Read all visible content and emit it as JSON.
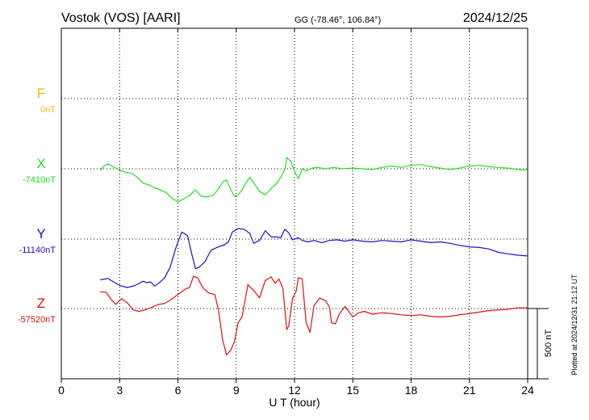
{
  "chart_data": {
    "type": "line",
    "title": "Vostok (VOS)  [AARI]",
    "coords": "GG (-78.46°, 106.84°)",
    "date": "2024/12/25",
    "plotted_note": "Plotted at 2024/12/31 21:12 UT",
    "xlabel": "U T (hour)",
    "xlim": [
      0,
      24
    ],
    "x_ticks": [
      "0",
      "3",
      "6",
      "9",
      "12",
      "15",
      "18",
      "21",
      "24"
    ],
    "scale_label": "500 nT",
    "scale_nT": 500,
    "grid": true,
    "series": [
      {
        "name": "F",
        "baseline_label": "0nT",
        "color": "#f5b400",
        "baseline_nT": 0,
        "points": []
      },
      {
        "name": "X",
        "baseline_label": "-7410nT",
        "color": "#22e022",
        "baseline_nT": -7410,
        "points": [
          [
            2.0,
            -10
          ],
          [
            2.2,
            20
          ],
          [
            2.4,
            35
          ],
          [
            2.6,
            20
          ],
          [
            2.8,
            5
          ],
          [
            3.1,
            -15
          ],
          [
            3.3,
            -25
          ],
          [
            3.6,
            -30
          ],
          [
            3.9,
            -60
          ],
          [
            4.2,
            -100
          ],
          [
            4.5,
            -115
          ],
          [
            4.8,
            -135
          ],
          [
            5.1,
            -150
          ],
          [
            5.4,
            -170
          ],
          [
            5.7,
            -210
          ],
          [
            6.0,
            -235
          ],
          [
            6.3,
            -215
          ],
          [
            6.6,
            -190
          ],
          [
            6.9,
            -150
          ],
          [
            7.2,
            -195
          ],
          [
            7.5,
            -200
          ],
          [
            7.8,
            -190
          ],
          [
            8.1,
            -140
          ],
          [
            8.3,
            -95
          ],
          [
            8.5,
            -80
          ],
          [
            8.7,
            -140
          ],
          [
            8.9,
            -195
          ],
          [
            9.1,
            -185
          ],
          [
            9.3,
            -150
          ],
          [
            9.5,
            -100
          ],
          [
            9.7,
            -60
          ],
          [
            9.9,
            -100
          ],
          [
            10.2,
            -160
          ],
          [
            10.5,
            -185
          ],
          [
            10.8,
            -140
          ],
          [
            11.1,
            -100
          ],
          [
            11.3,
            -60
          ],
          [
            11.5,
            -5
          ],
          [
            11.6,
            80
          ],
          [
            11.8,
            55
          ],
          [
            12.0,
            -15
          ],
          [
            12.2,
            -70
          ],
          [
            12.4,
            0
          ],
          [
            12.6,
            -15
          ],
          [
            12.9,
            5
          ],
          [
            13.2,
            10
          ],
          [
            13.6,
            0
          ],
          [
            14.0,
            10
          ],
          [
            14.5,
            0
          ],
          [
            15.0,
            5
          ],
          [
            15.5,
            0
          ],
          [
            16.0,
            -5
          ],
          [
            16.5,
            10
          ],
          [
            17.0,
            20
          ],
          [
            17.5,
            10
          ],
          [
            18.0,
            25
          ],
          [
            18.5,
            30
          ],
          [
            19.0,
            15
          ],
          [
            19.5,
            5
          ],
          [
            20.0,
            -5
          ],
          [
            20.5,
            5
          ],
          [
            21.0,
            20
          ],
          [
            21.5,
            25
          ],
          [
            22.0,
            15
          ],
          [
            22.5,
            10
          ],
          [
            23.0,
            5
          ],
          [
            23.5,
            -5
          ],
          [
            24.0,
            -10
          ]
        ]
      },
      {
        "name": "Y",
        "baseline_label": "-11140nT",
        "color": "#1414cc",
        "baseline_nT": -11140,
        "points": [
          [
            2.0,
            -290
          ],
          [
            2.4,
            -280
          ],
          [
            2.7,
            -305
          ],
          [
            3.0,
            -330
          ],
          [
            3.4,
            -345
          ],
          [
            3.8,
            -330
          ],
          [
            4.2,
            -300
          ],
          [
            4.4,
            -310
          ],
          [
            4.6,
            -305
          ],
          [
            4.8,
            -335
          ],
          [
            5.0,
            -315
          ],
          [
            5.3,
            -280
          ],
          [
            5.6,
            -200
          ],
          [
            5.9,
            -60
          ],
          [
            6.2,
            50
          ],
          [
            6.5,
            25
          ],
          [
            6.7,
            -100
          ],
          [
            6.9,
            -210
          ],
          [
            7.1,
            -200
          ],
          [
            7.4,
            -160
          ],
          [
            7.7,
            -80
          ],
          [
            8.0,
            -60
          ],
          [
            8.4,
            -40
          ],
          [
            8.6,
            -20
          ],
          [
            8.8,
            50
          ],
          [
            9.1,
            75
          ],
          [
            9.4,
            70
          ],
          [
            9.7,
            40
          ],
          [
            9.9,
            -30
          ],
          [
            10.2,
            -10
          ],
          [
            10.5,
            60
          ],
          [
            10.8,
            15
          ],
          [
            11.1,
            15
          ],
          [
            11.3,
            10
          ],
          [
            11.5,
            70
          ],
          [
            11.7,
            45
          ],
          [
            11.9,
            -5
          ],
          [
            12.2,
            10
          ],
          [
            12.4,
            -10
          ],
          [
            12.7,
            -20
          ],
          [
            13.0,
            -10
          ],
          [
            13.4,
            -25
          ],
          [
            13.8,
            -10
          ],
          [
            14.2,
            -5
          ],
          [
            14.6,
            -15
          ],
          [
            15.0,
            -5
          ],
          [
            15.5,
            -15
          ],
          [
            16.0,
            -20
          ],
          [
            16.5,
            -10
          ],
          [
            17.0,
            -15
          ],
          [
            17.5,
            -20
          ],
          [
            18.0,
            -5
          ],
          [
            18.5,
            -15
          ],
          [
            19.0,
            -25
          ],
          [
            19.5,
            -20
          ],
          [
            20.0,
            -30
          ],
          [
            20.5,
            -45
          ],
          [
            21.0,
            -55
          ],
          [
            21.5,
            -60
          ],
          [
            22.0,
            -70
          ],
          [
            22.5,
            -95
          ],
          [
            23.0,
            -105
          ],
          [
            23.5,
            -115
          ],
          [
            24.0,
            -120
          ]
        ]
      },
      {
        "name": "Z",
        "baseline_label": "-57520nT",
        "color": "#e01010",
        "baseline_nT": -57520,
        "points": [
          [
            2.0,
            120
          ],
          [
            2.3,
            115
          ],
          [
            2.6,
            60
          ],
          [
            2.8,
            30
          ],
          [
            3.1,
            70
          ],
          [
            3.4,
            40
          ],
          [
            3.7,
            -10
          ],
          [
            4.0,
            -20
          ],
          [
            4.3,
            -10
          ],
          [
            4.6,
            5
          ],
          [
            5.0,
            30
          ],
          [
            5.3,
            35
          ],
          [
            5.6,
            60
          ],
          [
            5.9,
            90
          ],
          [
            6.2,
            120
          ],
          [
            6.4,
            140
          ],
          [
            6.6,
            150
          ],
          [
            6.8,
            230
          ],
          [
            7.0,
            220
          ],
          [
            7.3,
            145
          ],
          [
            7.6,
            110
          ],
          [
            7.9,
            100
          ],
          [
            8.1,
            -20
          ],
          [
            8.3,
            -220
          ],
          [
            8.5,
            -330
          ],
          [
            8.7,
            -300
          ],
          [
            8.9,
            -240
          ],
          [
            9.1,
            -100
          ],
          [
            9.3,
            -60
          ],
          [
            9.6,
            170
          ],
          [
            9.9,
            130
          ],
          [
            10.2,
            75
          ],
          [
            10.5,
            200
          ],
          [
            10.8,
            225
          ],
          [
            11.0,
            180
          ],
          [
            11.2,
            210
          ],
          [
            11.4,
            145
          ],
          [
            11.6,
            -150
          ],
          [
            11.7,
            -125
          ],
          [
            11.9,
            70
          ],
          [
            12.1,
            130
          ],
          [
            12.2,
            220
          ],
          [
            12.4,
            210
          ],
          [
            12.6,
            -100
          ],
          [
            12.8,
            -170
          ],
          [
            13.0,
            20
          ],
          [
            13.3,
            75
          ],
          [
            13.6,
            55
          ],
          [
            13.8,
            10
          ],
          [
            13.9,
            -100
          ],
          [
            14.1,
            -110
          ],
          [
            14.3,
            -40
          ],
          [
            14.6,
            15
          ],
          [
            15.0,
            -60
          ],
          [
            15.3,
            -30
          ],
          [
            15.6,
            -20
          ],
          [
            16.0,
            -40
          ],
          [
            16.5,
            -30
          ],
          [
            17.0,
            -35
          ],
          [
            17.5,
            -45
          ],
          [
            18.0,
            -50
          ],
          [
            18.5,
            -45
          ],
          [
            19.0,
            -55
          ],
          [
            19.5,
            -60
          ],
          [
            20.0,
            -55
          ],
          [
            20.5,
            -45
          ],
          [
            21.0,
            -35
          ],
          [
            21.5,
            -25
          ],
          [
            22.0,
            -15
          ],
          [
            22.5,
            -10
          ],
          [
            23.0,
            -5
          ],
          [
            23.5,
            5
          ],
          [
            24.0,
            5
          ]
        ]
      }
    ]
  }
}
